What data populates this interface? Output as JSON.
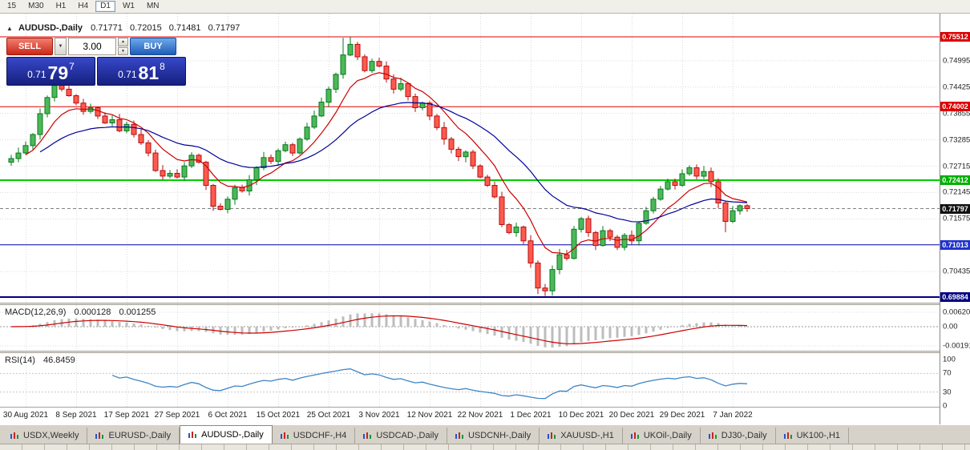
{
  "toolbar": {
    "timeframes": [
      {
        "label": "15"
      },
      {
        "label": "M30"
      },
      {
        "label": "H1"
      },
      {
        "label": "H4"
      },
      {
        "label": "D1"
      },
      {
        "label": "W1"
      },
      {
        "label": "MN"
      }
    ],
    "active": "D1"
  },
  "chart_title": {
    "collapse_icon": "▲",
    "symbol": "AUDUSD-,Daily",
    "open": "0.71771",
    "high": "0.72015",
    "low": "0.71481",
    "close": "0.71797"
  },
  "one_click": {
    "sell_label": "SELL",
    "buy_label": "BUY",
    "volume": "3.00",
    "sell_price": {
      "prefix": "0.71",
      "big": "79",
      "sup": "7"
    },
    "buy_price": {
      "prefix": "0.71",
      "big": "81",
      "sup": "8"
    }
  },
  "indicators": {
    "macd": {
      "name": "MACD(12,26,9)",
      "value_macd": "0.000128",
      "value_signal": "0.001255",
      "axis_labels": [
        "0.006201",
        "0.00",
        "-0.001917"
      ]
    },
    "rsi": {
      "name": "RSI(14)",
      "value": "46.8459",
      "axis_labels": [
        "100",
        "70",
        "30",
        "0"
      ]
    }
  },
  "price_axis": {
    "ticks": [
      "0.74995",
      "0.74425",
      "0.73855",
      "0.73285",
      "0.72715",
      "0.72145",
      "0.71575",
      "0.70435"
    ],
    "badges": [
      {
        "label": "0.75512",
        "price": 0.75512,
        "bg": "#dd0000"
      },
      {
        "label": "0.74002",
        "price": 0.74002,
        "bg": "#dd0000"
      },
      {
        "label": "0.72412",
        "price": 0.72412,
        "bg": "#00b000"
      },
      {
        "label": "0.71797",
        "price": 0.71797,
        "bg": "#111111"
      },
      {
        "label": "0.71013",
        "price": 0.71013,
        "bg": "#2233cc"
      },
      {
        "label": "0.69884",
        "price": 0.69884,
        "bg": "#000080"
      }
    ]
  },
  "tabs": [
    {
      "label": "USDX,Weekly",
      "active": false
    },
    {
      "label": "EURUSD-,Daily",
      "active": false
    },
    {
      "label": "AUDUSD-,Daily",
      "active": true
    },
    {
      "label": "USDCHF-,H4",
      "active": false
    },
    {
      "label": "USDCAD-,Daily",
      "active": false
    },
    {
      "label": "USDCNH-,Daily",
      "active": false
    },
    {
      "label": "XAUUSD-,H1",
      "active": false
    },
    {
      "label": "UKOil-,Daily",
      "active": false
    },
    {
      "label": "DJ30-,Daily",
      "active": false
    },
    {
      "label": "UK100-,H1",
      "active": false
    }
  ],
  "colors": {
    "bull_border": "#067a1e",
    "bull_fill": "#4db858",
    "bear_border": "#b40f0f",
    "bear_fill": "#ff5a4e",
    "ma_fast": "#cc0000",
    "ma_slow": "#000099",
    "macd_hist": "#bdbdbd",
    "macd_signal": "#cc0000",
    "rsi_line": "#3d85c6",
    "grid": "#dcdcdc",
    "current_price_line": "#808080"
  },
  "chart_data": {
    "type": "candlestick",
    "symbol": "AUDUSD-",
    "timeframe": "Daily",
    "ohlc_display": {
      "open": 0.71771,
      "high": 0.72015,
      "low": 0.71481,
      "close": 0.71797
    },
    "current_price": 0.71797,
    "y_range_visible": [
      0.6978,
      0.7601
    ],
    "levels": [
      {
        "price": 0.75512,
        "color": "#e00000",
        "width": 1
      },
      {
        "price": 0.74002,
        "color": "#e00000",
        "width": 1
      },
      {
        "price": 0.72412,
        "color": "#00cc00",
        "width": 2
      },
      {
        "price": 0.71013,
        "color": "#0000a0",
        "width": 1
      },
      {
        "price": 0.69884,
        "color": "#000080",
        "width": 2
      }
    ],
    "date_labels": [
      "30 Aug 2021",
      "8 Sep 2021",
      "17 Sep 2021",
      "27 Sep 2021",
      "6 Oct 2021",
      "15 Oct 2021",
      "25 Oct 2021",
      "3 Nov 2021",
      "12 Nov 2021",
      "22 Nov 2021",
      "1 Dec 2021",
      "10 Dec 2021",
      "20 Dec 2021",
      "29 Dec 2021",
      "7 Jan 2022"
    ],
    "date_label_indices": [
      2,
      9,
      16,
      23,
      30,
      37,
      44,
      51,
      58,
      65,
      72,
      79,
      86,
      93,
      100
    ],
    "candles": {
      "first_open": 0.728,
      "closes": [
        0.7288,
        0.73,
        0.7316,
        0.734,
        0.7385,
        0.742,
        0.7446,
        0.7438,
        0.7424,
        0.7408,
        0.739,
        0.7398,
        0.738,
        0.7365,
        0.7372,
        0.7348,
        0.7362,
        0.734,
        0.7322,
        0.73,
        0.7262,
        0.725,
        0.7256,
        0.7248,
        0.7272,
        0.7295,
        0.728,
        0.723,
        0.7185,
        0.7178,
        0.72,
        0.7225,
        0.7218,
        0.7242,
        0.7268,
        0.729,
        0.7282,
        0.7305,
        0.7318,
        0.73,
        0.733,
        0.7356,
        0.738,
        0.741,
        0.7438,
        0.747,
        0.7512,
        0.7535,
        0.7508,
        0.7478,
        0.7498,
        0.7488,
        0.746,
        0.7438,
        0.745,
        0.7422,
        0.7398,
        0.7408,
        0.738,
        0.7355,
        0.733,
        0.7308,
        0.7292,
        0.7302,
        0.7272,
        0.7248,
        0.723,
        0.7205,
        0.7145,
        0.7128,
        0.714,
        0.711,
        0.7062,
        0.7008,
        0.7002,
        0.7048,
        0.708,
        0.7072,
        0.7135,
        0.7158,
        0.7128,
        0.71,
        0.7132,
        0.7118,
        0.7096,
        0.7122,
        0.711,
        0.7148,
        0.7175,
        0.72,
        0.7222,
        0.7238,
        0.723,
        0.7255,
        0.7268,
        0.725,
        0.726,
        0.7238,
        0.7192,
        0.7152,
        0.7175,
        0.7186,
        0.71797
      ],
      "high_overrides": {
        "6": 0.7456,
        "46": 0.7549,
        "47": 0.75505
      },
      "low_overrides": {
        "73": 0.6995,
        "74": 0.69905,
        "99": 0.71285
      }
    },
    "moving_averages": [
      {
        "name": "fast",
        "period": 8,
        "color": "#cc0000"
      },
      {
        "name": "slow",
        "period": 24,
        "color": "#000099"
      }
    ],
    "macd": {
      "fast": 12,
      "slow": 26,
      "signal": 9,
      "last_macd": 0.000128,
      "last_signal": 0.001255
    },
    "rsi": {
      "period": 14,
      "last_value": 46.8459
    }
  }
}
